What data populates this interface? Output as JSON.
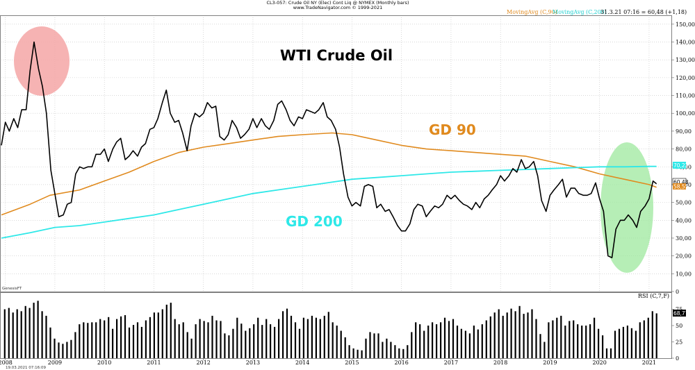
{
  "header": {
    "line1": "CL3-057: Crude Oil NY (Elec) Cont Liq @ NYMEX  (Monthly bars)",
    "line2": "www.TradeNavigator.com © 1999-2021"
  },
  "legend": {
    "ma90_label": "MovingAvg (C,90)",
    "ma200_label": "MovingAvg (C,200)",
    "ohlc_info": "31.3.21 07:16 = 60,48 (+1,18)"
  },
  "provider": "GenesisFT",
  "footer_timestamp": "19.03.2021 07:16:09",
  "colors": {
    "price": "#000000",
    "ma90": "#e08a1e",
    "ma200": "#2ee8e8",
    "high_circle": "#f4a6a6",
    "low_circle": "#9ee89e",
    "rsi_bar": "#000000",
    "grid": "#c0c0c0"
  },
  "chart_data": [
    {
      "type": "line",
      "title": "WTI Crude Oil",
      "annotations": [
        {
          "text": "GD 90",
          "color": "#e08a1e"
        },
        {
          "text": "GD 200",
          "color": "#2ee8e8"
        }
      ],
      "x_ticks": [
        "2008",
        "2009",
        "2010",
        "2011",
        "2012",
        "2013",
        "2014",
        "2015",
        "2016",
        "2017",
        "2018",
        "2019",
        "2020",
        "2021"
      ],
      "x_range": [
        2007.92,
        2021.45
      ],
      "ylim": [
        0,
        155
      ],
      "y_ticks": [
        "0",
        "10,00",
        "20,00",
        "30,00",
        "40,00",
        "50,00",
        "60,00",
        "70,00",
        "80,00",
        "90,00",
        "100,00",
        "110,00",
        "120,00",
        "130,00",
        "140,00",
        "150,00"
      ],
      "grid": true,
      "last_price_label": "60,48",
      "ma90_last_label": "58,55",
      "ma200_last_label": "70,22",
      "series": [
        {
          "name": "MovingAvg (C,90)",
          "points": [
            [
              2007.92,
              43
            ],
            [
              2008.5,
              49
            ],
            [
              2008.9,
              54
            ],
            [
              2009.5,
              57
            ],
            [
              2010.0,
              62
            ],
            [
              2010.5,
              67
            ],
            [
              2011.0,
              73
            ],
            [
              2011.5,
              78
            ],
            [
              2012.0,
              81
            ],
            [
              2012.5,
              83
            ],
            [
              2013.0,
              85
            ],
            [
              2013.5,
              87
            ],
            [
              2014.0,
              88
            ],
            [
              2014.6,
              89
            ],
            [
              2015.0,
              88
            ],
            [
              2015.5,
              85
            ],
            [
              2016.0,
              82
            ],
            [
              2016.5,
              80
            ],
            [
              2017.0,
              79
            ],
            [
              2017.5,
              78
            ],
            [
              2018.0,
              77
            ],
            [
              2018.5,
              76
            ],
            [
              2019.0,
              73
            ],
            [
              2019.5,
              70
            ],
            [
              2020.0,
              66
            ],
            [
              2020.5,
              63
            ],
            [
              2021.0,
              60
            ],
            [
              2021.15,
              58.55
            ]
          ]
        },
        {
          "name": "MovingAvg (C,200)",
          "points": [
            [
              2007.92,
              30
            ],
            [
              2008.5,
              33
            ],
            [
              2009.0,
              36
            ],
            [
              2009.5,
              37
            ],
            [
              2010.0,
              39
            ],
            [
              2010.5,
              41
            ],
            [
              2011.0,
              43
            ],
            [
              2011.5,
              46
            ],
            [
              2012.0,
              49
            ],
            [
              2012.5,
              52
            ],
            [
              2013.0,
              55
            ],
            [
              2013.5,
              57
            ],
            [
              2014.0,
              59
            ],
            [
              2014.5,
              61
            ],
            [
              2015.0,
              63
            ],
            [
              2015.5,
              64
            ],
            [
              2016.0,
              65
            ],
            [
              2016.5,
              66
            ],
            [
              2017.0,
              67
            ],
            [
              2017.5,
              67.5
            ],
            [
              2018.0,
              68
            ],
            [
              2018.5,
              68.5
            ],
            [
              2019.0,
              69
            ],
            [
              2019.5,
              69.5
            ],
            [
              2020.0,
              70
            ],
            [
              2020.5,
              70
            ],
            [
              2021.0,
              70.2
            ],
            [
              2021.15,
              70.22
            ]
          ]
        },
        {
          "name": "Price",
          "points": [
            [
              2007.92,
              82
            ],
            [
              2008.0,
              95
            ],
            [
              2008.08,
              90
            ],
            [
              2008.17,
              97
            ],
            [
              2008.25,
              92
            ],
            [
              2008.33,
              102
            ],
            [
              2008.42,
              102
            ],
            [
              2008.5,
              124
            ],
            [
              2008.58,
              140
            ],
            [
              2008.67,
              125
            ],
            [
              2008.75,
              115
            ],
            [
              2008.83,
              100
            ],
            [
              2008.92,
              68
            ],
            [
              2009.0,
              55
            ],
            [
              2009.08,
              42
            ],
            [
              2009.17,
              43
            ],
            [
              2009.25,
              49
            ],
            [
              2009.33,
              50
            ],
            [
              2009.42,
              66
            ],
            [
              2009.5,
              70
            ],
            [
              2009.58,
              69
            ],
            [
              2009.67,
              70
            ],
            [
              2009.75,
              70
            ],
            [
              2009.83,
              77
            ],
            [
              2009.92,
              77
            ],
            [
              2010.0,
              80
            ],
            [
              2010.08,
              73
            ],
            [
              2010.17,
              80
            ],
            [
              2010.25,
              84
            ],
            [
              2010.33,
              86
            ],
            [
              2010.42,
              74
            ],
            [
              2010.5,
              76
            ],
            [
              2010.58,
              79
            ],
            [
              2010.67,
              76
            ],
            [
              2010.75,
              81
            ],
            [
              2010.83,
              83
            ],
            [
              2010.92,
              91
            ],
            [
              2011.0,
              92
            ],
            [
              2011.08,
              97
            ],
            [
              2011.17,
              106
            ],
            [
              2011.25,
              113
            ],
            [
              2011.33,
              100
            ],
            [
              2011.42,
              95
            ],
            [
              2011.5,
              96
            ],
            [
              2011.58,
              89
            ],
            [
              2011.67,
              79
            ],
            [
              2011.75,
              93
            ],
            [
              2011.83,
              100
            ],
            [
              2011.92,
              98
            ],
            [
              2012.0,
              100
            ],
            [
              2012.08,
              106
            ],
            [
              2012.17,
              103
            ],
            [
              2012.25,
              104
            ],
            [
              2012.33,
              87
            ],
            [
              2012.42,
              85
            ],
            [
              2012.5,
              88
            ],
            [
              2012.58,
              96
            ],
            [
              2012.67,
              92
            ],
            [
              2012.75,
              86
            ],
            [
              2012.83,
              88
            ],
            [
              2012.92,
              91
            ],
            [
              2013.0,
              97
            ],
            [
              2013.08,
              92
            ],
            [
              2013.17,
              97
            ],
            [
              2013.25,
              93
            ],
            [
              2013.33,
              91
            ],
            [
              2013.42,
              96
            ],
            [
              2013.5,
              105
            ],
            [
              2013.58,
              107
            ],
            [
              2013.67,
              102
            ],
            [
              2013.75,
              96
            ],
            [
              2013.83,
              93
            ],
            [
              2013.92,
              98
            ],
            [
              2014.0,
              97
            ],
            [
              2014.08,
              102
            ],
            [
              2014.17,
              101
            ],
            [
              2014.25,
              100
            ],
            [
              2014.33,
              102
            ],
            [
              2014.42,
              106
            ],
            [
              2014.5,
              98
            ],
            [
              2014.58,
              96
            ],
            [
              2014.67,
              91
            ],
            [
              2014.75,
              81
            ],
            [
              2014.83,
              66
            ],
            [
              2014.92,
              53
            ],
            [
              2015.0,
              48
            ],
            [
              2015.08,
              50
            ],
            [
              2015.17,
              48
            ],
            [
              2015.25,
              59
            ],
            [
              2015.33,
              60
            ],
            [
              2015.42,
              59
            ],
            [
              2015.5,
              47
            ],
            [
              2015.58,
              49
            ],
            [
              2015.67,
              45
            ],
            [
              2015.75,
              46
            ],
            [
              2015.83,
              42
            ],
            [
              2015.92,
              37
            ],
            [
              2016.0,
              34
            ],
            [
              2016.08,
              34
            ],
            [
              2016.17,
              38
            ],
            [
              2016.25,
              46
            ],
            [
              2016.33,
              49
            ],
            [
              2016.42,
              48
            ],
            [
              2016.5,
              42
            ],
            [
              2016.58,
              45
            ],
            [
              2016.67,
              48
            ],
            [
              2016.75,
              47
            ],
            [
              2016.83,
              49
            ],
            [
              2016.92,
              54
            ],
            [
              2017.0,
              52
            ],
            [
              2017.08,
              54
            ],
            [
              2017.17,
              51
            ],
            [
              2017.25,
              49
            ],
            [
              2017.33,
              48
            ],
            [
              2017.42,
              46
            ],
            [
              2017.5,
              50
            ],
            [
              2017.58,
              47
            ],
            [
              2017.67,
              52
            ],
            [
              2017.75,
              54
            ],
            [
              2017.83,
              57
            ],
            [
              2017.92,
              60
            ],
            [
              2018.0,
              65
            ],
            [
              2018.08,
              62
            ],
            [
              2018.17,
              65
            ],
            [
              2018.25,
              69
            ],
            [
              2018.33,
              67
            ],
            [
              2018.42,
              74
            ],
            [
              2018.5,
              69
            ],
            [
              2018.58,
              70
            ],
            [
              2018.67,
              73
            ],
            [
              2018.75,
              65
            ],
            [
              2018.83,
              51
            ],
            [
              2018.92,
              45
            ],
            [
              2019.0,
              54
            ],
            [
              2019.08,
              57
            ],
            [
              2019.17,
              60
            ],
            [
              2019.25,
              63
            ],
            [
              2019.33,
              53
            ],
            [
              2019.42,
              58
            ],
            [
              2019.5,
              58
            ],
            [
              2019.58,
              55
            ],
            [
              2019.67,
              54
            ],
            [
              2019.75,
              54
            ],
            [
              2019.83,
              55
            ],
            [
              2019.92,
              61
            ],
            [
              2020.0,
              52
            ],
            [
              2020.08,
              45
            ],
            [
              2020.17,
              20
            ],
            [
              2020.25,
              19
            ],
            [
              2020.33,
              35
            ],
            [
              2020.42,
              40
            ],
            [
              2020.5,
              40
            ],
            [
              2020.58,
              43
            ],
            [
              2020.67,
              40
            ],
            [
              2020.75,
              36
            ],
            [
              2020.83,
              45
            ],
            [
              2020.92,
              48
            ],
            [
              2021.0,
              52
            ],
            [
              2021.08,
              62
            ],
            [
              2021.15,
              60.48
            ]
          ]
        }
      ]
    },
    {
      "type": "bar",
      "title": "RSI (C,7,F)",
      "ylim": [
        0,
        100
      ],
      "y_ticks": [
        "0",
        "25",
        "50",
        "75"
      ],
      "last_value_label": "68,77",
      "values": [
        75,
        77,
        70,
        75,
        72,
        80,
        77,
        85,
        88,
        72,
        65,
        47,
        30,
        24,
        22,
        25,
        28,
        40,
        52,
        55,
        54,
        55,
        55,
        60,
        58,
        63,
        45,
        60,
        64,
        66,
        47,
        51,
        55,
        48,
        58,
        63,
        70,
        70,
        75,
        82,
        85,
        60,
        52,
        55,
        40,
        30,
        52,
        60,
        57,
        55,
        65,
        58,
        57,
        38,
        35,
        45,
        62,
        53,
        42,
        46,
        52,
        62,
        51,
        60,
        52,
        48,
        60,
        72,
        76,
        65,
        55,
        45,
        62,
        60,
        65,
        62,
        60,
        65,
        71,
        55,
        50,
        42,
        32,
        20,
        15,
        13,
        12,
        30,
        40,
        38,
        38,
        25,
        30,
        25,
        20,
        15,
        14,
        20,
        40,
        55,
        52,
        42,
        50,
        55,
        52,
        55,
        62,
        57,
        60,
        50,
        45,
        42,
        38,
        50,
        44,
        52,
        58,
        64,
        70,
        75,
        65,
        70,
        76,
        72,
        80,
        68,
        70,
        75,
        60,
        37,
        25,
        55,
        58,
        62,
        65,
        50,
        57,
        58,
        52,
        50,
        50,
        52,
        62,
        45,
        35,
        15,
        15,
        42,
        45,
        48,
        50,
        46,
        42,
        55,
        58,
        62,
        72,
        68.77
      ]
    }
  ]
}
